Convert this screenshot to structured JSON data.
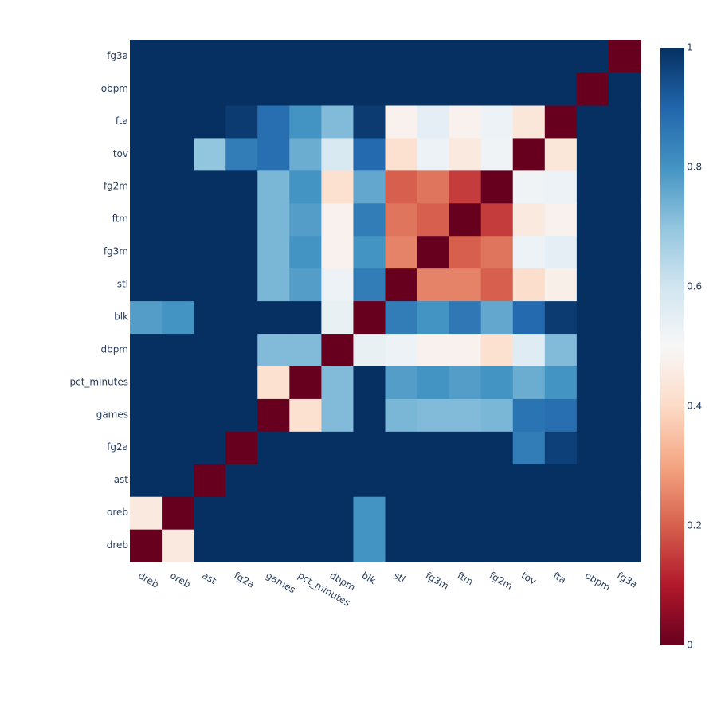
{
  "chart_data": {
    "type": "heatmap",
    "title": "",
    "xlabel": "",
    "ylabel": "",
    "x": [
      "dreb",
      "oreb",
      "ast",
      "fg2a",
      "games",
      "pct_minutes",
      "dbpm",
      "blk",
      "stl",
      "fg3m",
      "ftm",
      "fg2m",
      "tov",
      "fta",
      "obpm",
      "fg3a"
    ],
    "y": [
      "dreb",
      "oreb",
      "ast",
      "fg2a",
      "games",
      "pct_minutes",
      "dbpm",
      "blk",
      "stl",
      "fg3m",
      "ftm",
      "fg2m",
      "tov",
      "fta",
      "obpm",
      "fg3a"
    ],
    "z": [
      [
        0.0,
        0.45,
        1,
        1,
        1,
        1,
        1,
        0.8,
        1,
        1,
        1,
        1,
        1,
        1,
        1,
        1
      ],
      [
        0.45,
        0.0,
        1,
        1,
        1,
        1,
        1,
        0.8,
        1,
        1,
        1,
        1,
        1,
        1,
        1,
        1
      ],
      [
        1,
        1,
        0.0,
        1,
        1,
        1,
        1,
        1,
        1,
        1,
        1,
        1,
        1,
        1,
        1,
        1
      ],
      [
        1,
        1,
        1,
        0.0,
        1,
        1,
        1,
        1,
        1,
        1,
        1,
        1,
        0.85,
        0.97,
        1,
        1
      ],
      [
        1,
        1,
        1,
        1,
        0.0,
        0.42,
        0.72,
        1,
        0.73,
        0.72,
        0.72,
        0.73,
        0.87,
        0.88,
        1,
        1
      ],
      [
        1,
        1,
        1,
        1,
        0.42,
        0.0,
        0.72,
        1,
        0.78,
        0.8,
        0.78,
        0.8,
        0.75,
        0.8,
        1,
        1
      ],
      [
        1,
        1,
        1,
        1,
        0.72,
        0.72,
        0.0,
        0.54,
        0.53,
        0.48,
        0.48,
        0.42,
        0.56,
        0.72,
        1,
        1
      ],
      [
        0.78,
        0.8,
        1,
        1,
        1,
        1,
        0.54,
        0.0,
        0.85,
        0.8,
        0.86,
        0.76,
        0.89,
        0.98,
        1,
        1
      ],
      [
        1,
        1,
        1,
        1,
        0.73,
        0.78,
        0.53,
        0.85,
        0.0,
        0.25,
        0.25,
        0.2,
        0.41,
        0.47,
        1,
        1
      ],
      [
        1,
        1,
        1,
        1,
        0.73,
        0.8,
        0.48,
        0.8,
        0.25,
        0.0,
        0.2,
        0.23,
        0.53,
        0.55,
        1,
        1
      ],
      [
        1,
        1,
        1,
        1,
        0.73,
        0.78,
        0.48,
        0.85,
        0.23,
        0.2,
        0.0,
        0.15,
        0.45,
        0.48,
        1,
        1
      ],
      [
        1,
        1,
        1,
        1,
        0.73,
        0.8,
        0.42,
        0.76,
        0.2,
        0.23,
        0.15,
        0.0,
        0.52,
        0.53,
        1,
        1
      ],
      [
        1,
        1,
        0.7,
        0.85,
        0.88,
        0.75,
        0.58,
        0.89,
        0.42,
        0.53,
        0.45,
        0.52,
        0.0,
        0.44,
        1,
        1
      ],
      [
        1,
        1,
        1,
        0.98,
        0.88,
        0.8,
        0.72,
        0.98,
        0.48,
        0.55,
        0.48,
        0.53,
        0.44,
        0.0,
        1,
        1
      ],
      [
        1,
        1,
        1,
        1,
        1,
        1,
        1,
        1,
        1,
        1,
        1,
        1,
        1,
        1,
        0.0,
        1
      ],
      [
        1,
        1,
        1,
        1,
        1,
        1,
        1,
        1,
        1,
        1,
        1,
        1,
        1,
        1,
        1,
        0.0
      ]
    ],
    "zlim": [
      0,
      1
    ],
    "colorscale": "RdBu",
    "colorbar": {
      "tickvals": [
        0,
        0.2,
        0.4,
        0.6,
        0.8,
        1
      ],
      "ticktext": [
        "0",
        "0.2",
        "0.4",
        "0.6",
        "0.8",
        "1"
      ]
    },
    "colors": {
      "stops": [
        "#67001f",
        "#b2182b",
        "#d6604d",
        "#f4a582",
        "#fddbc7",
        "#f7f7f7",
        "#d1e5f0",
        "#92c5de",
        "#4393c3",
        "#2166ac",
        "#053061"
      ],
      "tick_text": "#2a3f5f",
      "background": "#ffffff"
    }
  }
}
